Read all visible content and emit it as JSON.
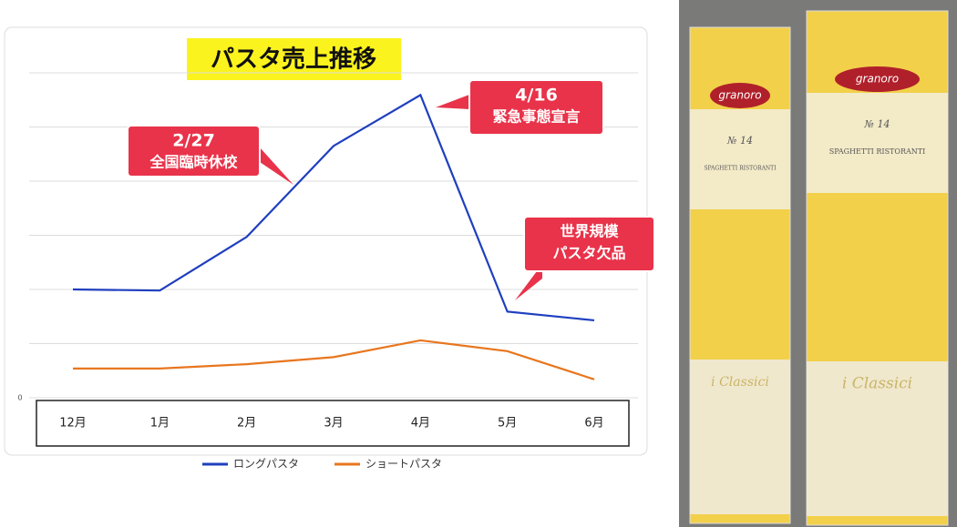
{
  "chart_data": {
    "type": "line",
    "title": "パスタ売上推移",
    "categories": [
      "12月",
      "1月",
      "2月",
      "3月",
      "4月",
      "5月",
      "6月"
    ],
    "series": [
      {
        "name": "ロングパスタ",
        "color": "#1f3fbf",
        "values": [
          2.0,
          1.98,
          2.97,
          4.65,
          5.59,
          1.59,
          1.43
        ]
      },
      {
        "name": "ショートパスタ",
        "color": "#e8761e",
        "values": [
          0.54,
          0.54,
          0.62,
          0.75,
          1.06,
          0.86,
          0.34
        ]
      }
    ],
    "ylim": [
      0,
      6
    ],
    "yticks": [
      0
    ],
    "gridlines": [
      0,
      1,
      2,
      3,
      4,
      5,
      6
    ],
    "grid": true,
    "legend": "bottom",
    "annotations": [
      {
        "lines": [
          "2/27",
          "全国臨時休校"
        ]
      },
      {
        "lines": [
          "4/16",
          "緊急事態宣言"
        ]
      },
      {
        "lines": [
          "世界規模",
          "パスタ欠品"
        ]
      }
    ]
  },
  "photo": {
    "packages": [
      {
        "brand": "granoro",
        "number": "№ 14",
        "product": "SPAGHETTI RISTORANTI",
        "line": "i Classici"
      },
      {
        "brand": "granoro",
        "number": "№ 14",
        "product": "SPAGHETTI RISTORANTI",
        "line": "i Classici"
      }
    ]
  }
}
